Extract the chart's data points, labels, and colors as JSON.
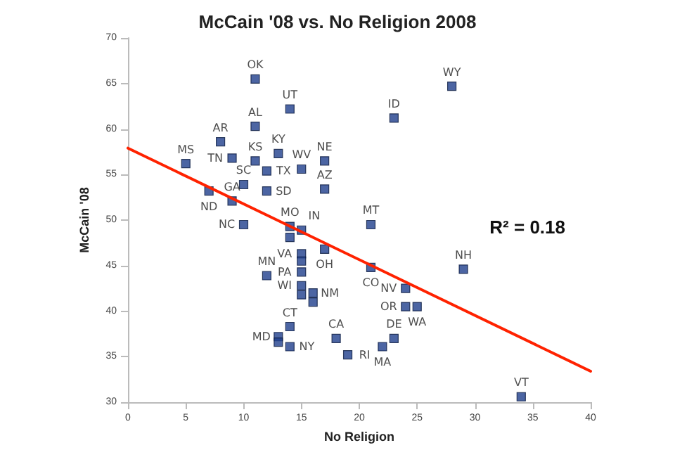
{
  "chart_data": {
    "type": "scatter",
    "title": "McCain '08 vs. No Religion 2008",
    "xlabel": "No Religion",
    "ylabel": "McCain '08",
    "xlim": [
      0,
      40
    ],
    "xticks": [
      0,
      5,
      10,
      15,
      20,
      25,
      30,
      35,
      40
    ],
    "ylim": [
      30,
      70
    ],
    "yticks": [
      30,
      35,
      40,
      45,
      50,
      55,
      60,
      65,
      70
    ],
    "marker": "square",
    "series": [
      {
        "color": "#1f3f8c",
        "x": [
          11,
          14,
          11,
          8,
          9,
          11,
          13,
          12,
          15,
          17,
          5,
          10,
          12,
          17,
          7,
          9,
          10,
          14,
          15,
          21,
          14,
          15,
          17,
          15,
          15,
          12,
          21,
          15,
          15,
          16,
          16,
          14,
          13,
          13,
          14,
          18,
          19,
          22,
          23,
          24,
          24,
          25,
          29,
          34,
          28,
          23
        ],
        "values": [
          65.5,
          62.2,
          60.3,
          58.6,
          56.8,
          56.5,
          57.3,
          55.4,
          55.6,
          56.5,
          56.2,
          53.9,
          53.2,
          53.4,
          53.2,
          52.1,
          49.5,
          49.3,
          48.9,
          49.5,
          48.1,
          46.3,
          46.8,
          45.5,
          44.3,
          43.9,
          44.8,
          42.8,
          41.8,
          42.0,
          41.0,
          38.3,
          37.2,
          36.6,
          36.1,
          37.0,
          35.2,
          36.1,
          37.0,
          42.5,
          40.5,
          40.5,
          44.6,
          30.6,
          64.7,
          61.2
        ]
      },
      {
        "type": "line",
        "marker": "none",
        "color": "#ff2200",
        "x": [
          0,
          40
        ],
        "values": [
          57.9,
          33.4
        ]
      }
    ],
    "annotations": [
      {
        "text": "OK",
        "x": 11,
        "y": 65.5
      },
      {
        "text": "UT",
        "x": 14,
        "y": 62.2
      },
      {
        "text": "AL",
        "x": 11,
        "y": 60.3
      },
      {
        "text": "AR",
        "x": 8,
        "y": 58.6
      },
      {
        "text": "TN",
        "x": 9,
        "y": 56.8
      },
      {
        "text": "KS",
        "x": 11,
        "y": 56.5
      },
      {
        "text": "KY",
        "x": 13,
        "y": 57.3
      },
      {
        "text": "TX",
        "x": 12,
        "y": 55.4
      },
      {
        "text": "WV",
        "x": 15,
        "y": 55.6
      },
      {
        "text": "NE",
        "x": 17,
        "y": 56.5
      },
      {
        "text": "MS",
        "x": 5,
        "y": 56.2
      },
      {
        "text": "SC",
        "x": 10,
        "y": 53.9
      },
      {
        "text": "SD",
        "x": 12,
        "y": 53.2
      },
      {
        "text": "AZ",
        "x": 17,
        "y": 53.4
      },
      {
        "text": "ND",
        "x": 7,
        "y": 53.2
      },
      {
        "text": "GA",
        "x": 9,
        "y": 52.1
      },
      {
        "text": "NC",
        "x": 10,
        "y": 49.5
      },
      {
        "text": "MO",
        "x": 14,
        "y": 49.3
      },
      {
        "text": "IN",
        "x": 15,
        "y": 48.9
      },
      {
        "text": "MT",
        "x": 21,
        "y": 49.5
      },
      {
        "text": "VA",
        "x": 15,
        "y": 46.3
      },
      {
        "text": "OH",
        "x": 17,
        "y": 46.8
      },
      {
        "text": "PA",
        "x": 15,
        "y": 44.3
      },
      {
        "text": "MN",
        "x": 12,
        "y": 43.9
      },
      {
        "text": "CO",
        "x": 21,
        "y": 44.8
      },
      {
        "text": "WI",
        "x": 15,
        "y": 42.8
      },
      {
        "text": "NM",
        "x": 16,
        "y": 42.0
      },
      {
        "text": "CT",
        "x": 14,
        "y": 38.3
      },
      {
        "text": "MD",
        "x": 13,
        "y": 37.2
      },
      {
        "text": "NY",
        "x": 14,
        "y": 36.1
      },
      {
        "text": "CA",
        "x": 18,
        "y": 37.0
      },
      {
        "text": "RI",
        "x": 19,
        "y": 35.2
      },
      {
        "text": "MA",
        "x": 22,
        "y": 36.1
      },
      {
        "text": "DE",
        "x": 23,
        "y": 37.0
      },
      {
        "text": "NV",
        "x": 24,
        "y": 42.5
      },
      {
        "text": "OR",
        "x": 24,
        "y": 40.5
      },
      {
        "text": "WA",
        "x": 25,
        "y": 40.5
      },
      {
        "text": "NH",
        "x": 29,
        "y": 44.6
      },
      {
        "text": "VT",
        "x": 34,
        "y": 30.6
      },
      {
        "text": "WY",
        "x": 28,
        "y": 64.7
      },
      {
        "text": "ID",
        "x": 23,
        "y": 61.2
      },
      "R² = 0.18"
    ]
  }
}
